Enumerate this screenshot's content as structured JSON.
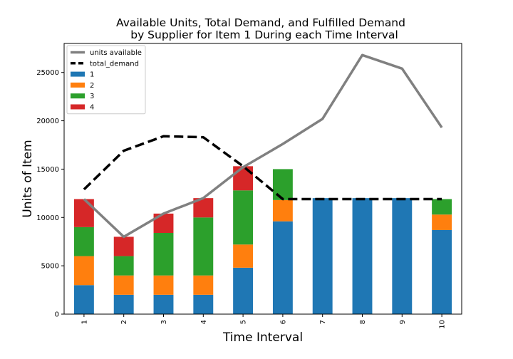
{
  "chart_data": {
    "type": "bar",
    "title_line1": "Available Units, Total Demand, and Fulfilled Demand",
    "title_line2": "by Supplier for Item 1 During each Time Interval",
    "xlabel": "Time Interval",
    "ylabel": "Units of Item",
    "categories": [
      "1",
      "2",
      "3",
      "4",
      "5",
      "6",
      "7",
      "8",
      "9",
      "10"
    ],
    "ylim": [
      0,
      28000
    ],
    "yticks": [
      0,
      5000,
      10000,
      15000,
      20000,
      25000
    ],
    "grid": false,
    "legend_position": "top-left",
    "stacked": true,
    "series": [
      {
        "name": "1",
        "color": "#1f77b4",
        "values": [
          3000,
          2000,
          2000,
          2000,
          4800,
          9600,
          12000,
          12000,
          12000,
          8700
        ]
      },
      {
        "name": "2",
        "color": "#ff7f0e",
        "values": [
          3000,
          2000,
          2000,
          2000,
          2400,
          2200,
          0,
          0,
          0,
          1600
        ]
      },
      {
        "name": "3",
        "color": "#2ca02c",
        "values": [
          3000,
          2000,
          4400,
          6000,
          5600,
          3200,
          0,
          0,
          0,
          1600
        ]
      },
      {
        "name": "4",
        "color": "#d62728",
        "values": [
          2900,
          2000,
          2000,
          2000,
          2500,
          0,
          0,
          0,
          0,
          0
        ]
      }
    ],
    "lines": [
      {
        "name": "units available",
        "color": "#808080",
        "dashed": false,
        "values": [
          11900,
          8000,
          10400,
          12000,
          15200,
          17600,
          20200,
          26800,
          25400,
          19300
        ]
      },
      {
        "name": "total_demand",
        "color": "#000000",
        "dashed": true,
        "values": [
          12900,
          16900,
          18400,
          18300,
          15300,
          11900,
          11900,
          11900,
          11900,
          11900
        ]
      }
    ]
  }
}
